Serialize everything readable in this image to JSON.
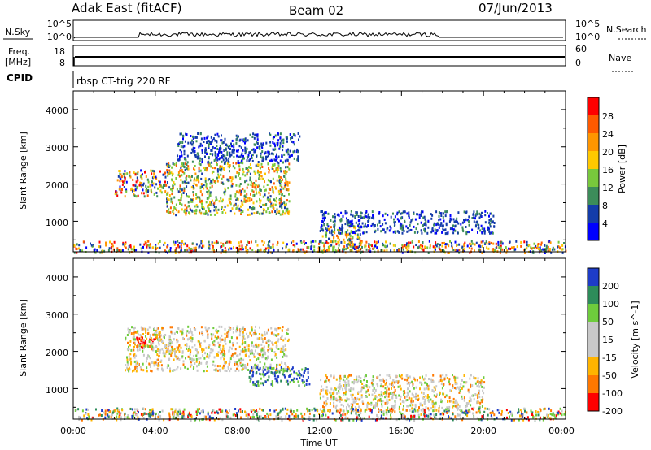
{
  "header": {
    "station": "Adak East (fitACF)",
    "beam": "Beam 02",
    "date": "07/Jun/2013"
  },
  "strip1": {
    "left_label": "N.Sky",
    "right_label": "N.Search",
    "left_ticks": [
      "10^5",
      "10^0"
    ],
    "right_ticks": [
      "10^5",
      "10^0"
    ]
  },
  "strip2": {
    "left_label_1": "Freq.",
    "left_label_2": "[MHz]",
    "right_label": "Nave",
    "left_ticks": [
      "18",
      "8"
    ],
    "right_ticks": [
      "60",
      "0"
    ]
  },
  "cpid": {
    "label": "CPID",
    "value": "rbsp CT-trig 220 RF"
  },
  "axes": {
    "ylabel": "Slant Range [km]",
    "xlabel": "Time UT",
    "x_ticks": [
      "00:00",
      "04:00",
      "08:00",
      "12:00",
      "16:00",
      "20:00",
      "00:00"
    ],
    "y_ticks": [
      "1000",
      "2000",
      "3000",
      "4000"
    ]
  },
  "colorbars": {
    "power": {
      "label": "Power [dB]",
      "ticks": [
        "28",
        "24",
        "20",
        "16",
        "12",
        "8",
        "4"
      ]
    },
    "velocity": {
      "label": "Velocity [m s^-1]",
      "ticks": [
        "200",
        "100",
        "50",
        "15",
        "-15",
        "-50",
        "-100",
        "-200"
      ]
    }
  },
  "chart_data": [
    {
      "type": "heatmap",
      "title": "Power",
      "x_range_hours": [
        0,
        24
      ],
      "y_range_km": [
        180,
        4500
      ],
      "color_scale": "Power [dB]",
      "color_ticks": [
        28,
        24,
        20,
        16,
        12,
        8,
        4
      ],
      "colors": [
        "#ff0000",
        "#ff5a00",
        "#ff9600",
        "#ffc800",
        "#78c83c",
        "#3c8c5a",
        "#143caa",
        "#0000ff"
      ],
      "regions": [
        {
          "t_start": 2.0,
          "t_end": 4.5,
          "r_start": 1700,
          "r_end": 2400,
          "level": "mixed"
        },
        {
          "t_start": 4.5,
          "t_end": 10.5,
          "r_start": 1200,
          "r_end": 2600,
          "level": "high"
        },
        {
          "t_start": 5.0,
          "t_end": 11.0,
          "r_start": 2600,
          "r_end": 3400,
          "level": "low"
        },
        {
          "t_start": 12.0,
          "t_end": 14.0,
          "r_start": 180,
          "r_end": 900,
          "level": "high"
        },
        {
          "t_start": 12.0,
          "t_end": 20.5,
          "r_start": 700,
          "r_end": 1300,
          "level": "low"
        },
        {
          "t_start": 0.0,
          "t_end": 24.0,
          "r_start": 180,
          "r_end": 500,
          "level": "mixed"
        }
      ]
    },
    {
      "type": "heatmap",
      "title": "Velocity",
      "x_range_hours": [
        0,
        24
      ],
      "y_range_km": [
        180,
        4500
      ],
      "color_scale": "Velocity [m s^-1]",
      "color_ticks": [
        200,
        100,
        50,
        15,
        -15,
        -50,
        -100,
        -200
      ],
      "colors": [
        "#1e3cc8",
        "#2d8c5a",
        "#6ecc3c",
        "#c8c8c8",
        "#c8c8c8",
        "#ffb400",
        "#ff7800",
        "#ff0000"
      ],
      "regions": [
        {
          "t_start": 3.0,
          "t_end": 4.0,
          "r_start": 2100,
          "r_end": 2400,
          "level": "-200"
        },
        {
          "t_start": 2.5,
          "t_end": 10.5,
          "r_start": 1500,
          "r_end": 2700,
          "level": "-15..15"
        },
        {
          "t_start": 8.5,
          "t_end": 11.5,
          "r_start": 1100,
          "r_end": 1600,
          "level": "100..200"
        },
        {
          "t_start": 12.0,
          "t_end": 20.0,
          "r_start": 400,
          "r_end": 1400,
          "level": "-15..15"
        },
        {
          "t_start": 0.0,
          "t_end": 24.0,
          "r_start": 180,
          "r_end": 500,
          "level": "mixed"
        }
      ]
    }
  ]
}
